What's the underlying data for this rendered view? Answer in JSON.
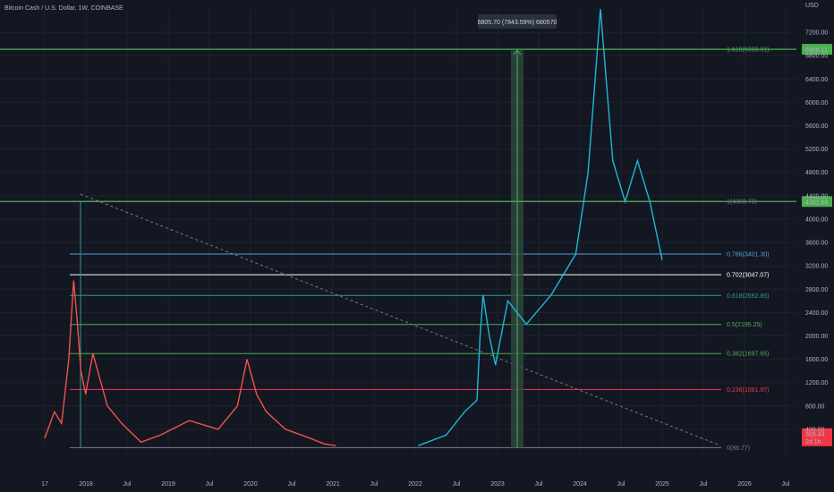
{
  "header": {
    "title": "Bitcoin Cash / U.S. Dollar, 1W, COINBASE",
    "currency": "USD"
  },
  "colors": {
    "background": "#131722",
    "grid": "#1e222d",
    "up": "#26a69a",
    "down": "#ef5350",
    "price_line": "#1fb8d3",
    "fib_green": "#4caf50",
    "fib_red": "#f23645",
    "fib_white": "#ffffff",
    "fib_teal": "#2a9d8f",
    "fib_blue": "#5b9bd5",
    "fib_grey": "#787b86",
    "measure_fill": "#2e4a40",
    "trendline": "#787b86"
  },
  "chart_data": {
    "type": "line",
    "title": "Bitcoin Cash / U.S. Dollar, 1W, COINBASE",
    "ylabel": "USD",
    "ylim": [
      0,
      7600
    ],
    "x_tick_labels": [
      "17",
      "2018",
      "Jul",
      "2019",
      "Jul",
      "2020",
      "Jul",
      "2021",
      "Jul",
      "2022",
      "Jul",
      "2023",
      "Jul",
      "2024",
      "Jul",
      "2025",
      "Jul",
      "2026",
      "Jul"
    ],
    "y_tick_labels": [
      "400.00",
      "800.00",
      "1200.00",
      "1600.00",
      "2000.00",
      "2400.00",
      "2800.00",
      "3200.00",
      "3600.00",
      "4000.00",
      "4400.00",
      "4800.00",
      "5200.00",
      "5600.00",
      "6000.00",
      "6400.00",
      "6800.00",
      "7200.00"
    ],
    "fib_levels": [
      {
        "label": "1.618(6909.81)",
        "value": 6909.81,
        "color": "#4caf50"
      },
      {
        "label": "1(4303.73)",
        "value": 4303.73,
        "color": "#787b86"
      },
      {
        "label": "0.786(3401.30)",
        "value": 3401.3,
        "color": "#5b9bd5"
      },
      {
        "label": "0.702(3047.07)",
        "value": 3047.07,
        "color": "#ffffff"
      },
      {
        "label": "0.618(2692.85)",
        "value": 2692.85,
        "color": "#2a9d8f"
      },
      {
        "label": "0.5(2195.25)",
        "value": 2195.25,
        "color": "#4caf50"
      },
      {
        "label": "0.382(1697.65)",
        "value": 1697.65,
        "color": "#4caf50"
      },
      {
        "label": "0.236(1081.97)",
        "value": 1081.97,
        "color": "#f23645"
      },
      {
        "label": "0(86.77)",
        "value": 86.77,
        "color": "#787b86"
      }
    ],
    "horizontal_lines": [
      {
        "value": 6909.11,
        "label": "6909.11",
        "color": "#4caf50"
      },
      {
        "value": 4301.68,
        "label": "4301.68",
        "color": "#4caf50"
      }
    ],
    "current_price": {
      "value": 309.44,
      "label": "309.44",
      "countdown": "2d 1h"
    },
    "measure": {
      "label": "6805.70 (7843.59%) 680570",
      "from_value": 86.77,
      "to_value": 6892.47
    },
    "series": [
      {
        "segment": "history",
        "x": [
          0,
          0.02,
          0.035,
          0.05,
          0.06,
          0.068,
          0.075,
          0.085,
          0.1,
          0.13,
          0.16,
          0.2,
          0.24,
          0.3,
          0.36,
          0.4,
          0.42,
          0.44,
          0.46,
          0.48,
          0.5,
          0.55,
          0.58,
          0.605
        ],
        "y": [
          250,
          700,
          500,
          1600,
          2950,
          2200,
          1400,
          1000,
          1700,
          800,
          500,
          180,
          300,
          550,
          400,
          800,
          1600,
          1000,
          700,
          550,
          400,
          250,
          150,
          120
        ]
      },
      {
        "segment": "2023_rally",
        "x": [
          0.605,
          0.63,
          0.65,
          0.68,
          0.7,
          0.705,
          0.71,
          0.72,
          0.73,
          0.75,
          0.78,
          0.82,
          0.86,
          0.88,
          0.9,
          0.92,
          0.94,
          0.96,
          0.98,
          1.0
        ],
        "y": [
          120,
          220,
          300,
          700,
          900,
          2000,
          2700,
          2000,
          1500,
          2600,
          2200,
          2700,
          3400,
          4800,
          7600,
          5000,
          4300,
          5000,
          4300,
          3300
        ]
      }
    ]
  }
}
